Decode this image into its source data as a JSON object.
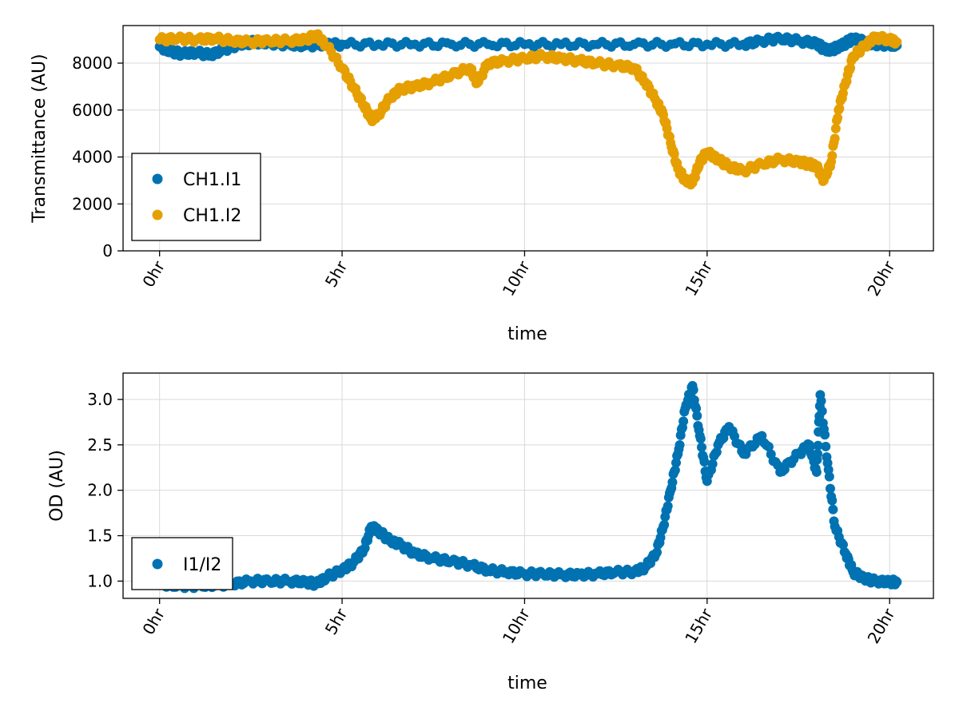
{
  "colors": {
    "blue": "#0072b2",
    "orange": "#e69f00",
    "grid": "#d9d9d9",
    "frame": "#000000"
  },
  "chart_data": [
    {
      "type": "scatter",
      "xlabel": "time",
      "ylabel": "Transmittance (AU)",
      "xlim": [
        -1.0,
        21.2
      ],
      "ylim": [
        0,
        9600
      ],
      "x_unit": "hr",
      "xticks": [
        0,
        5,
        10,
        15,
        20
      ],
      "xticklabels": [
        "0hr",
        "5hr",
        "10hr",
        "15hr",
        "20hr"
      ],
      "yticks": [
        0,
        2000,
        4000,
        6000,
        8000
      ],
      "yticklabels": [
        "0",
        "2000",
        "4000",
        "6000",
        "8000"
      ],
      "grid": true,
      "legend_position": "bottom-left",
      "series": [
        {
          "name": "CH1.I1",
          "color": "#0072b2",
          "x": [
            0.0,
            0.3,
            0.6,
            1.0,
            1.4,
            1.8,
            2.2,
            2.6,
            3.0,
            3.5,
            4.0,
            4.5,
            5.0,
            6.0,
            7.0,
            8.0,
            9.0,
            10.0,
            11.0,
            12.0,
            13.0,
            14.0,
            15.0,
            16.0,
            16.5,
            17.0,
            17.5,
            18.0,
            18.2,
            18.4,
            18.6,
            18.8,
            19.0,
            19.3,
            19.6,
            20.0,
            20.2
          ],
          "y": [
            8700,
            8500,
            8400,
            8450,
            8350,
            8600,
            8800,
            8900,
            8850,
            8800,
            8750,
            8800,
            8800,
            8800,
            8800,
            8800,
            8800,
            8800,
            8800,
            8800,
            8800,
            8800,
            8800,
            8800,
            8950,
            9050,
            8950,
            8850,
            8600,
            8550,
            8700,
            8850,
            9050,
            8900,
            8800,
            8800,
            8750
          ]
        },
        {
          "name": "CH1.I2",
          "color": "#e69f00",
          "x": [
            0.0,
            0.5,
            1.0,
            1.5,
            2.0,
            2.5,
            3.0,
            3.5,
            4.0,
            4.3,
            4.6,
            5.0,
            5.3,
            5.6,
            5.8,
            6.0,
            6.3,
            6.6,
            7.0,
            7.5,
            8.0,
            8.5,
            8.7,
            9.0,
            9.5,
            10.0,
            10.5,
            11.0,
            11.5,
            12.0,
            12.5,
            13.0,
            13.3,
            13.6,
            13.8,
            14.0,
            14.2,
            14.4,
            14.6,
            14.8,
            15.0,
            15.3,
            15.6,
            16.0,
            16.5,
            17.0,
            17.5,
            17.8,
            18.0,
            18.2,
            18.4,
            18.6,
            18.8,
            19.0,
            19.3,
            19.6,
            20.0,
            20.2
          ],
          "y": [
            9000,
            9050,
            9000,
            9050,
            8950,
            8900,
            8950,
            8950,
            9000,
            9200,
            8700,
            7800,
            7000,
            6200,
            5600,
            5800,
            6500,
            6900,
            7000,
            7200,
            7500,
            7800,
            7150,
            8000,
            8100,
            8200,
            8300,
            8200,
            8100,
            8000,
            7900,
            7800,
            7200,
            6400,
            5800,
            4600,
            3500,
            3000,
            2900,
            3800,
            4200,
            3900,
            3600,
            3400,
            3700,
            3900,
            3800,
            3700,
            3600,
            3000,
            3800,
            6000,
            7200,
            8300,
            8700,
            9100,
            9000,
            8900
          ]
        }
      ]
    },
    {
      "type": "scatter",
      "xlabel": "time",
      "ylabel": "OD (AU)",
      "xlim": [
        -1.0,
        21.2
      ],
      "ylim": [
        0.81,
        3.29
      ],
      "x_unit": "hr",
      "xticks": [
        0,
        5,
        10,
        15,
        20
      ],
      "xticklabels": [
        "0hr",
        "5hr",
        "10hr",
        "15hr",
        "20hr"
      ],
      "yticks": [
        1.0,
        1.5,
        2.0,
        2.5,
        3.0
      ],
      "yticklabels": [
        "1.0",
        "1.5",
        "2.0",
        "2.5",
        "3.0"
      ],
      "grid": true,
      "legend_position": "bottom-left",
      "series": [
        {
          "name": "I1/I2",
          "color": "#0072b2",
          "x": [
            0.0,
            0.5,
            1.0,
            1.5,
            2.0,
            2.5,
            3.0,
            3.5,
            4.0,
            4.3,
            4.6,
            5.0,
            5.3,
            5.6,
            5.8,
            6.0,
            6.3,
            6.6,
            7.0,
            7.5,
            8.0,
            8.5,
            9.0,
            9.5,
            10.0,
            10.5,
            11.0,
            11.5,
            12.0,
            12.5,
            13.0,
            13.3,
            13.6,
            13.8,
            14.0,
            14.2,
            14.4,
            14.6,
            14.8,
            15.0,
            15.3,
            15.6,
            16.0,
            16.5,
            17.0,
            17.5,
            17.8,
            18.0,
            18.1,
            18.3,
            18.5,
            18.8,
            19.0,
            19.3,
            19.6,
            20.0,
            20.2
          ],
          "y": [
            0.97,
            0.95,
            0.95,
            0.96,
            0.97,
            1.0,
            1.0,
            1.0,
            0.99,
            0.97,
            1.05,
            1.12,
            1.2,
            1.35,
            1.6,
            1.55,
            1.45,
            1.4,
            1.3,
            1.25,
            1.22,
            1.18,
            1.12,
            1.1,
            1.08,
            1.08,
            1.07,
            1.07,
            1.08,
            1.1,
            1.1,
            1.15,
            1.3,
            1.6,
            2.0,
            2.4,
            2.9,
            3.15,
            2.6,
            2.1,
            2.5,
            2.7,
            2.4,
            2.6,
            2.2,
            2.4,
            2.5,
            2.2,
            3.05,
            2.3,
            1.6,
            1.3,
            1.1,
            1.03,
            1.0,
            0.99,
            0.99
          ]
        }
      ]
    }
  ]
}
